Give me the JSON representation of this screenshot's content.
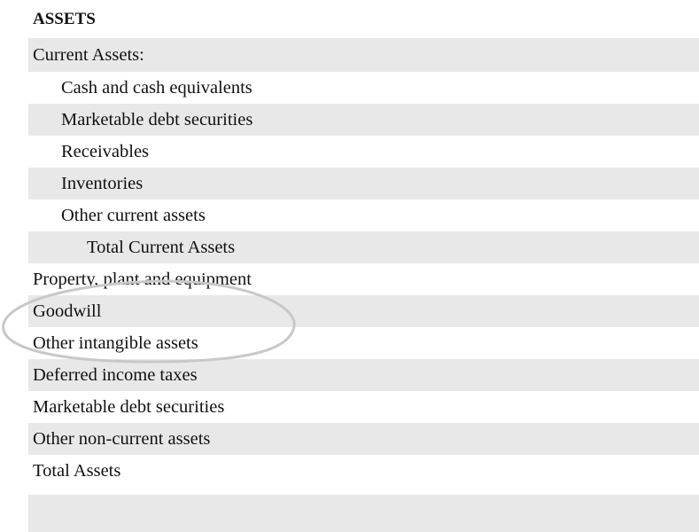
{
  "heading": "ASSETS",
  "rows": [
    {
      "label": "Current Assets:"
    },
    {
      "label": "Cash and cash equivalents"
    },
    {
      "label": "Marketable debt securities"
    },
    {
      "label": "Receivables"
    },
    {
      "label": "Inventories"
    },
    {
      "label": "Other current assets"
    },
    {
      "label": "Total Current Assets"
    },
    {
      "label": "Property, plant and equipment"
    },
    {
      "label": "Goodwill"
    },
    {
      "label": "Other intangible assets"
    },
    {
      "label": "Deferred income taxes"
    },
    {
      "label": "Marketable debt securities"
    },
    {
      "label": "Other non-current assets"
    },
    {
      "label": "Total Assets"
    }
  ],
  "colors": {
    "row_shade": "#e8e8e8",
    "annotation_stroke": "#c8c8c8"
  }
}
